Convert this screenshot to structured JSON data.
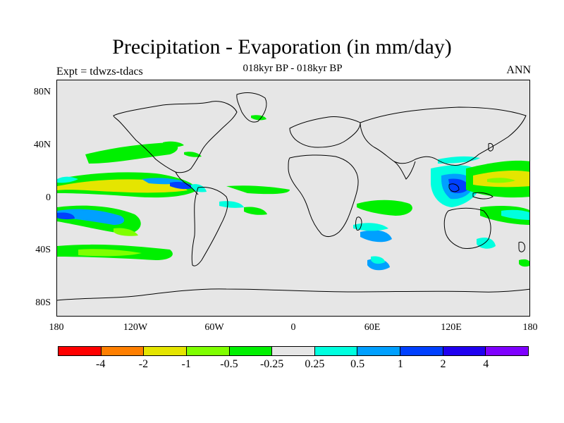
{
  "title": "Precipitation - Evaporation (in mm/day)",
  "subtitle": "018kyr BP - 018kyr BP",
  "left_string": "Expt = tdwzs-tdacs",
  "right_string": "ANN",
  "y_ticks": [
    "80N",
    "40N",
    "0",
    "40S",
    "80S"
  ],
  "x_ticks": [
    "180",
    "120W",
    "60W",
    "0",
    "60E",
    "120E",
    "180"
  ],
  "colorbar": {
    "colors": [
      "#ff0000",
      "#ff7f00",
      "#e5e500",
      "#7fff00",
      "#00f000",
      "#e6e6e6",
      "#00ffdf",
      "#00a0ff",
      "#0040ff",
      "#2000f0",
      "#7f00ff"
    ],
    "labels": [
      "-4",
      "-2",
      "-1",
      "-0.5",
      "-0.25",
      "0.25",
      "0.5",
      "1",
      "2",
      "4"
    ]
  }
}
